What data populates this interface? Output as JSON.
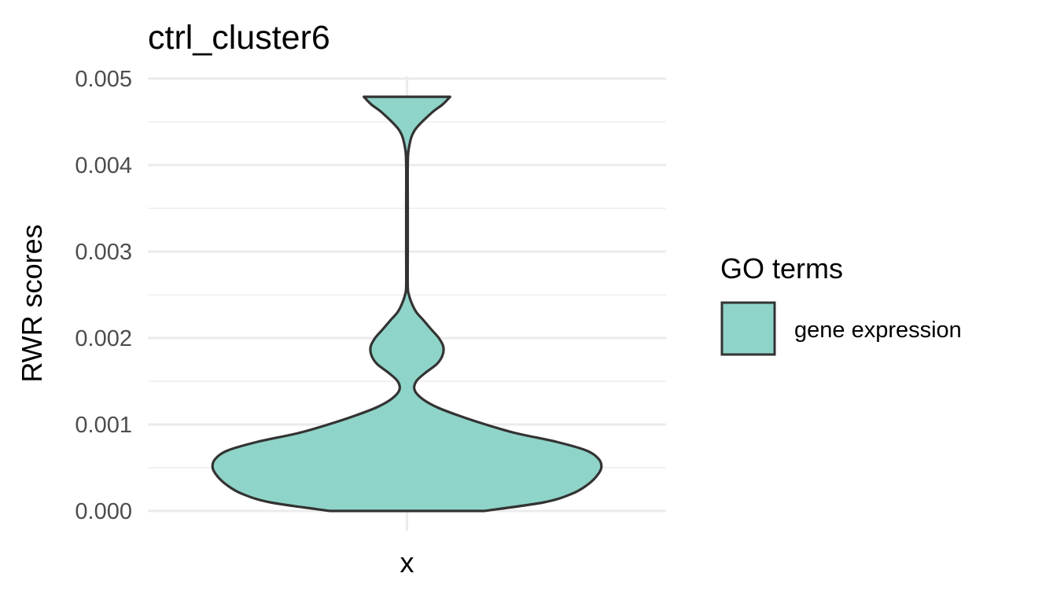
{
  "chart_data": {
    "type": "violin",
    "title": "ctrl_cluster6",
    "xlabel": "",
    "ylabel": "RWR scores",
    "x_categories": [
      "x"
    ],
    "ylim": [
      0.0,
      0.005
    ],
    "y_ticks": [
      "0.000",
      "0.001",
      "0.002",
      "0.003",
      "0.004",
      "0.005"
    ],
    "y_tick_values": [
      0.0,
      0.001,
      0.002,
      0.003,
      0.004,
      0.005
    ],
    "grid": true,
    "legend": {
      "title": "GO terms",
      "position": "right",
      "entries": [
        {
          "label": "gene expression",
          "fill": "#8fd4c8",
          "stroke": "#333333"
        }
      ]
    },
    "series": [
      {
        "name": "gene expression",
        "category": "x",
        "fill": "#8fd4c8",
        "stroke": "#333333",
        "y_min": 0.0,
        "y_max": 0.00479,
        "density_profile": [
          [
            0.0,
            0.396
          ],
          [
            0.0001,
            0.705
          ],
          [
            0.0002,
            0.85
          ],
          [
            0.0003,
            0.927
          ],
          [
            0.0004,
            0.975
          ],
          [
            0.0005,
            1.0
          ],
          [
            0.0006,
            0.987
          ],
          [
            0.0007,
            0.922
          ],
          [
            0.0008,
            0.768
          ],
          [
            0.0009,
            0.56
          ],
          [
            0.001,
            0.405
          ],
          [
            0.0011,
            0.27
          ],
          [
            0.0012,
            0.154
          ],
          [
            0.0013,
            0.077
          ],
          [
            0.0014,
            0.039
          ],
          [
            0.0015,
            0.048
          ],
          [
            0.0016,
            0.096
          ],
          [
            0.0017,
            0.154
          ],
          [
            0.0018,
            0.183
          ],
          [
            0.0019,
            0.187
          ],
          [
            0.002,
            0.164
          ],
          [
            0.0021,
            0.125
          ],
          [
            0.0022,
            0.087
          ],
          [
            0.0023,
            0.048
          ],
          [
            0.0024,
            0.025
          ],
          [
            0.0025,
            0.01
          ],
          [
            0.0026,
            0.004
          ],
          [
            0.003,
            0.004
          ],
          [
            0.0035,
            0.004
          ],
          [
            0.004,
            0.004
          ],
          [
            0.0042,
            0.01
          ],
          [
            0.0044,
            0.039
          ],
          [
            0.0046,
            0.125
          ],
          [
            0.0047,
            0.183
          ],
          [
            0.00479,
            0.222
          ]
        ]
      }
    ]
  }
}
